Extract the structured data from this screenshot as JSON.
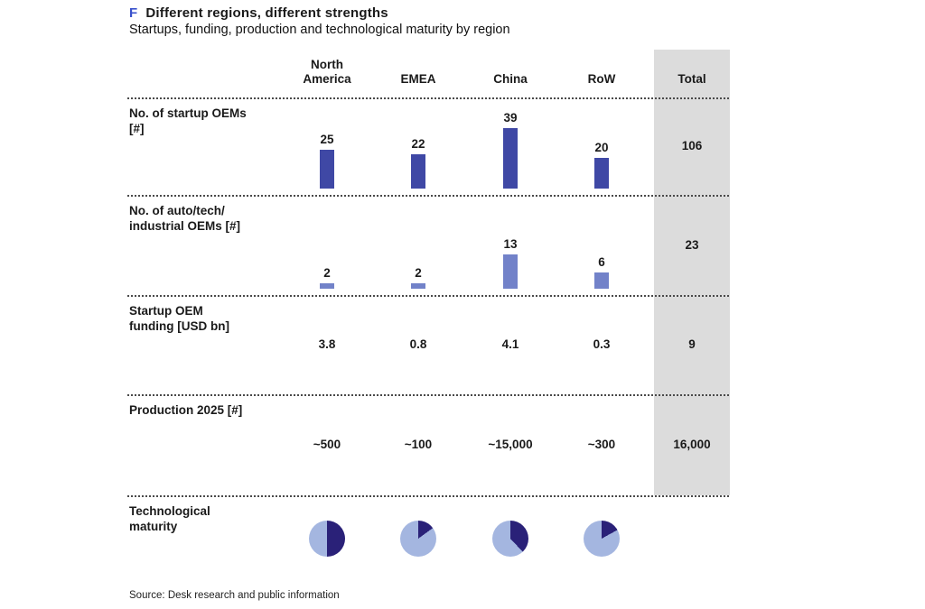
{
  "figure": {
    "marker": "F",
    "title": "Different regions, different strengths",
    "subtitle": "Startups, funding, production and technological maturity by region",
    "source": "Source: Desk research and public information"
  },
  "colors": {
    "accent_blue": "#3a52cc",
    "bar_dark": "#3f48a5",
    "bar_light": "#7282c9",
    "pie_light": "#a4b6e0",
    "pie_dark": "#2a2178",
    "total_band_gray": "#dcdcdc",
    "text": "#1a1a1a"
  },
  "chart_data": {
    "type": "table",
    "title": "Different regions, different strengths",
    "subtitle": "Startups, funding, production and technological maturity by region",
    "columns": [
      "North\nAmerica",
      "EMEA",
      "China",
      "RoW",
      "Total"
    ],
    "legend_position": "none",
    "grid": "dotted-row-separators",
    "rows": [
      {
        "label": "No. of startup OEMs\n[#]",
        "display": "bar",
        "unit": "#",
        "values": [
          25,
          22,
          39,
          20
        ],
        "value_labels": [
          "25",
          "22",
          "39",
          "20"
        ],
        "total": "106"
      },
      {
        "label": "No. of auto/tech/\nindustrial OEMs [#]",
        "display": "bar",
        "unit": "#",
        "values": [
          2,
          2,
          13,
          6
        ],
        "value_labels": [
          "2",
          "2",
          "13",
          "6"
        ],
        "total": "23"
      },
      {
        "label": "Startup OEM\nfunding [USD bn]",
        "display": "text",
        "unit": "USD bn",
        "values": [
          3.8,
          0.8,
          4.1,
          0.3
        ],
        "value_labels": [
          "3.8",
          "0.8",
          "4.1",
          "0.3"
        ],
        "total": "9"
      },
      {
        "label": "Production 2025 [#]",
        "display": "text",
        "unit": "#",
        "values": [
          500,
          100,
          15000,
          300
        ],
        "value_labels": [
          "~500",
          "~100",
          "~15,000",
          "~300"
        ],
        "total": "16,000"
      },
      {
        "label": "Technological\nmaturity",
        "display": "pie",
        "unit": "dark fraction of pie",
        "values": [
          0.5,
          0.15,
          0.38,
          0.17
        ],
        "value_labels": [
          "50%",
          "15%",
          "38%",
          "17%"
        ],
        "total": ""
      }
    ]
  }
}
